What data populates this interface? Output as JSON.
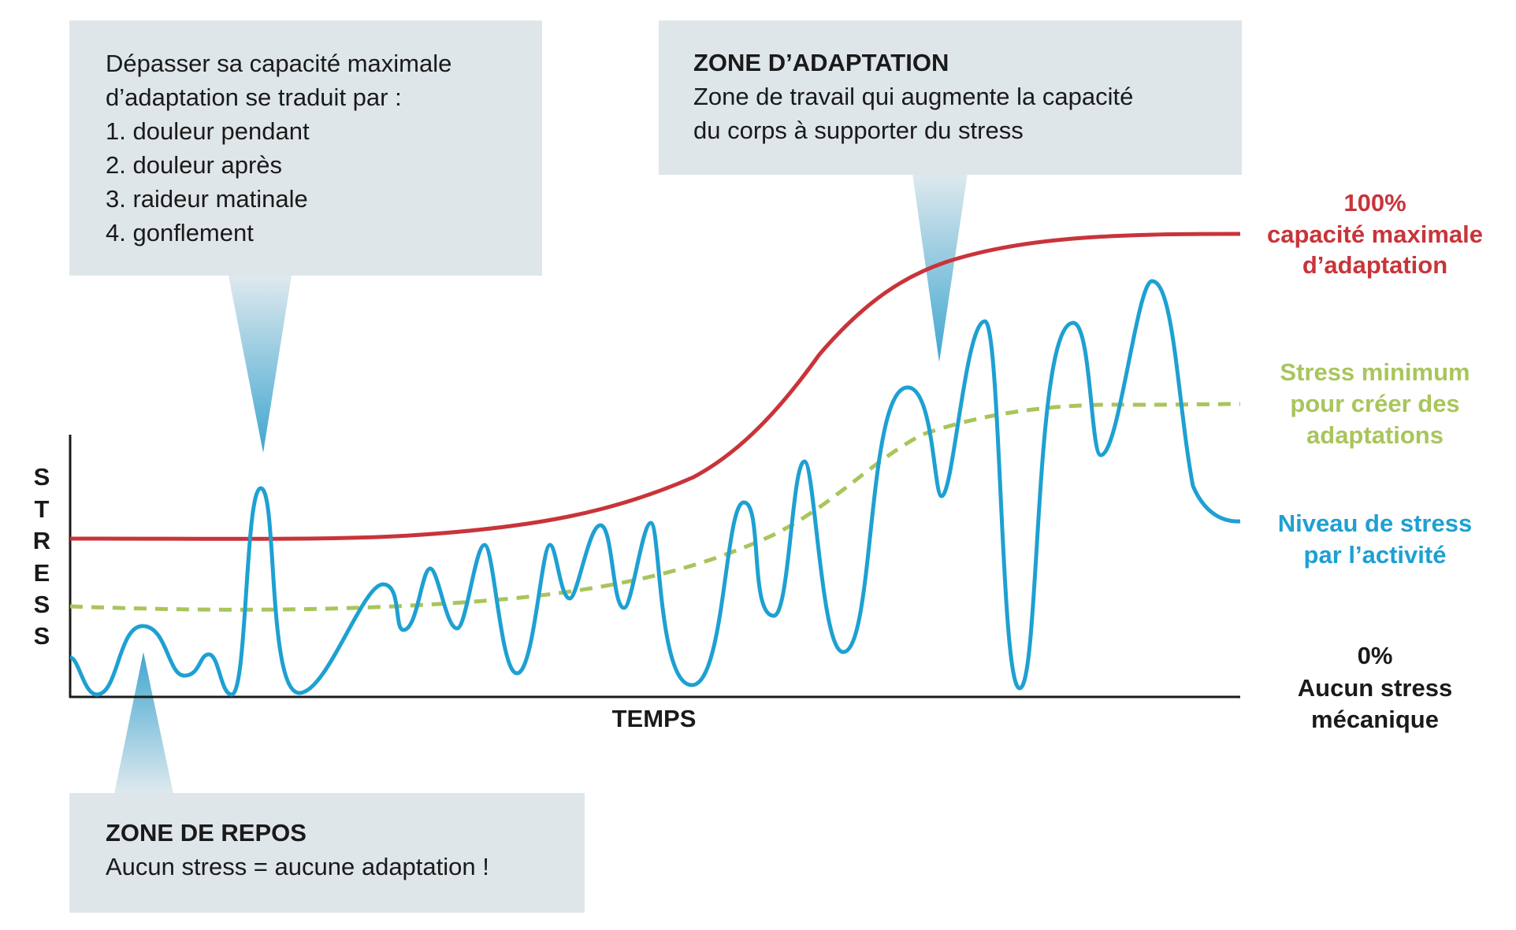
{
  "axes": {
    "y_label_letters": [
      "S",
      "T",
      "R",
      "E",
      "S",
      "S"
    ],
    "x_label": "TEMPS"
  },
  "callouts": {
    "overload": {
      "intro": [
        "Dépasser sa capacité maximale",
        "d’adaptation se traduit par :"
      ],
      "items": [
        "1.  douleur pendant",
        "2. douleur après",
        "3. raideur matinale",
        "4. gonflement"
      ]
    },
    "adaptation": {
      "title": "ZONE D’ADAPTATION",
      "lines": [
        "Zone de travail qui augmente la capacité",
        "du corps à supporter du stress"
      ]
    },
    "rest": {
      "title": "ZONE DE REPOS",
      "text": "Aucun stress = aucune adaptation !"
    }
  },
  "legend": {
    "capacity": {
      "lines": [
        "100%",
        "capacité maximale",
        "d’adaptation"
      ],
      "color": "#C8343A"
    },
    "minimum": {
      "lines": [
        "Stress minimum",
        "pour créer des",
        "adaptations"
      ],
      "color": "#A9C55B"
    },
    "activity": {
      "lines": [
        "Niveau de stress",
        "par l’activité"
      ],
      "color": "#1EA0D2"
    },
    "zero": {
      "lines": [
        "0%",
        "Aucun stress",
        "mécanique"
      ],
      "color": "#1A1A1A"
    }
  },
  "colors": {
    "box_fill": "#DFE6E9",
    "axis": "#1A1A1A",
    "text": "#1A1A1A",
    "pointer_top": "#DFE9EE",
    "pointer_bottom": "#3FA6CF"
  }
}
